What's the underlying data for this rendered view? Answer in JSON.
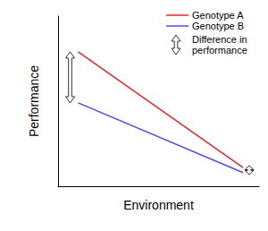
{
  "chart_data": {
    "type": "line",
    "x": [
      1.0,
      9.2
    ],
    "series": [
      {
        "name": "Genotype A",
        "color": "#e8242a",
        "values": [
          7.9,
          1.1
        ]
      },
      {
        "name": "Genotype B",
        "color": "#4a4fe0",
        "values": [
          4.9,
          0.8
        ]
      }
    ],
    "x_label": "Environment",
    "y_label": "Performance",
    "annotations": [
      "Difference in performance"
    ],
    "xlim": [
      0,
      10
    ],
    "ylim": [
      0,
      10
    ],
    "tick_labels": false,
    "grid": false,
    "legend": "upper right"
  }
}
